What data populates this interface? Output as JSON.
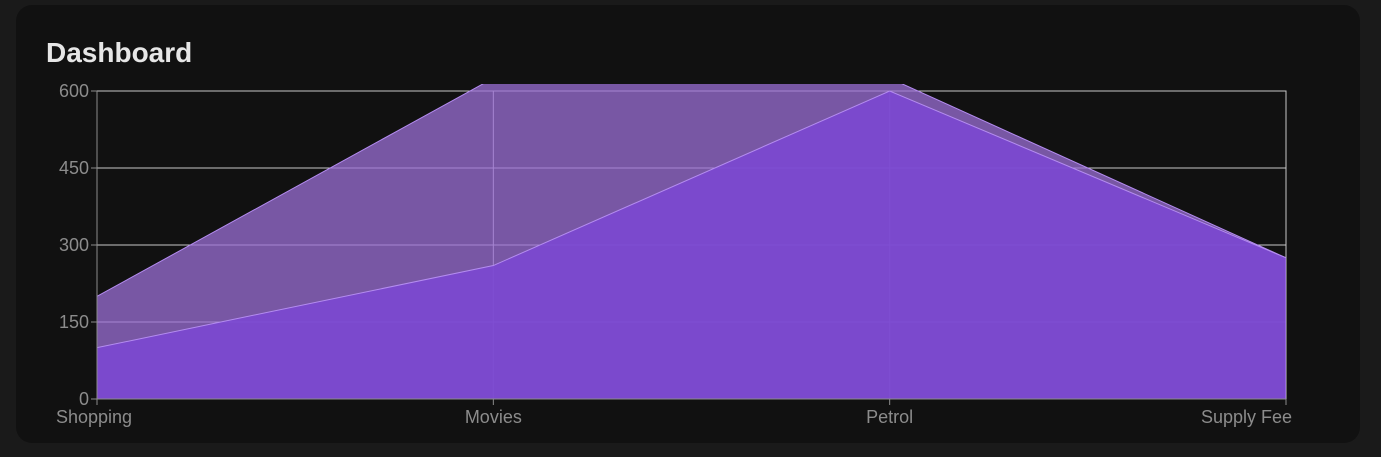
{
  "header": {
    "title": "Dashboard"
  },
  "chart_data": {
    "type": "area",
    "categories": [
      "Shopping",
      "Movies",
      "Petrol",
      "Supply Fee"
    ],
    "ylim": [
      0,
      600
    ],
    "yticks": [
      0,
      150,
      300,
      450,
      600
    ],
    "grid": true,
    "title": "",
    "xlabel": "",
    "ylabel": "",
    "series": [
      {
        "values": [
          200,
          625,
          625,
          275
        ],
        "color": "#9b6fd6",
        "opacity": 0.75
      },
      {
        "values": [
          100,
          260,
          600,
          275
        ],
        "color": "#7b48d2",
        "opacity": 0.9
      }
    ],
    "colors": {
      "grid": "#c8c8c8",
      "axis": "#8c8c8c",
      "card": "#111111",
      "page": "#1a1a1a"
    }
  }
}
